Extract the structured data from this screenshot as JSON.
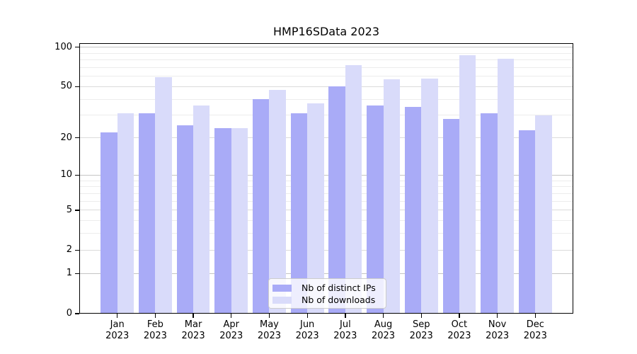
{
  "chart_data": {
    "type": "bar",
    "title": "HMP16SData 2023",
    "x_year": "2023",
    "categories": [
      "Jan",
      "Feb",
      "Mar",
      "Apr",
      "May",
      "Jun",
      "Jul",
      "Aug",
      "Sep",
      "Oct",
      "Nov",
      "Dec"
    ],
    "series": [
      {
        "name": "Nb of distinct IPs",
        "color": "#a9abf7",
        "values": [
          22,
          31,
          25,
          24,
          40,
          31,
          50,
          36,
          35,
          28,
          31,
          23
        ]
      },
      {
        "name": "Nb of downloads",
        "color": "#d9dbfa",
        "values": [
          31,
          59,
          36,
          24,
          47,
          37,
          73,
          57,
          58,
          87,
          82,
          30
        ]
      }
    ],
    "y_axis": {
      "scale": "log10(value+1)",
      "ylim": [
        0,
        107
      ],
      "ticks": [
        {
          "label": "100",
          "v": 100
        },
        {
          "label": "50",
          "v": 50
        },
        {
          "label": "20",
          "v": 20
        },
        {
          "label": "10",
          "v": 10
        },
        {
          "label": "5",
          "v": 5
        },
        {
          "label": "2",
          "v": 2
        },
        {
          "label": "1",
          "v": 1
        },
        {
          "label": "0",
          "v": 0
        }
      ],
      "major_gridlines": [
        1,
        10,
        100
      ],
      "mid_gridlines": [
        2,
        5,
        20,
        50
      ],
      "minor_gridlines": [
        3,
        4,
        6,
        7,
        8,
        9,
        30,
        40,
        60,
        70,
        80,
        90
      ]
    },
    "legend_position": "bottom-center",
    "grid": true
  },
  "colors": {
    "axis": "#000000",
    "grid_major": "#c4c4c4",
    "grid_mid": "#dbdbdb",
    "grid_minor": "#ececec",
    "legend_border": "#cccccc"
  }
}
